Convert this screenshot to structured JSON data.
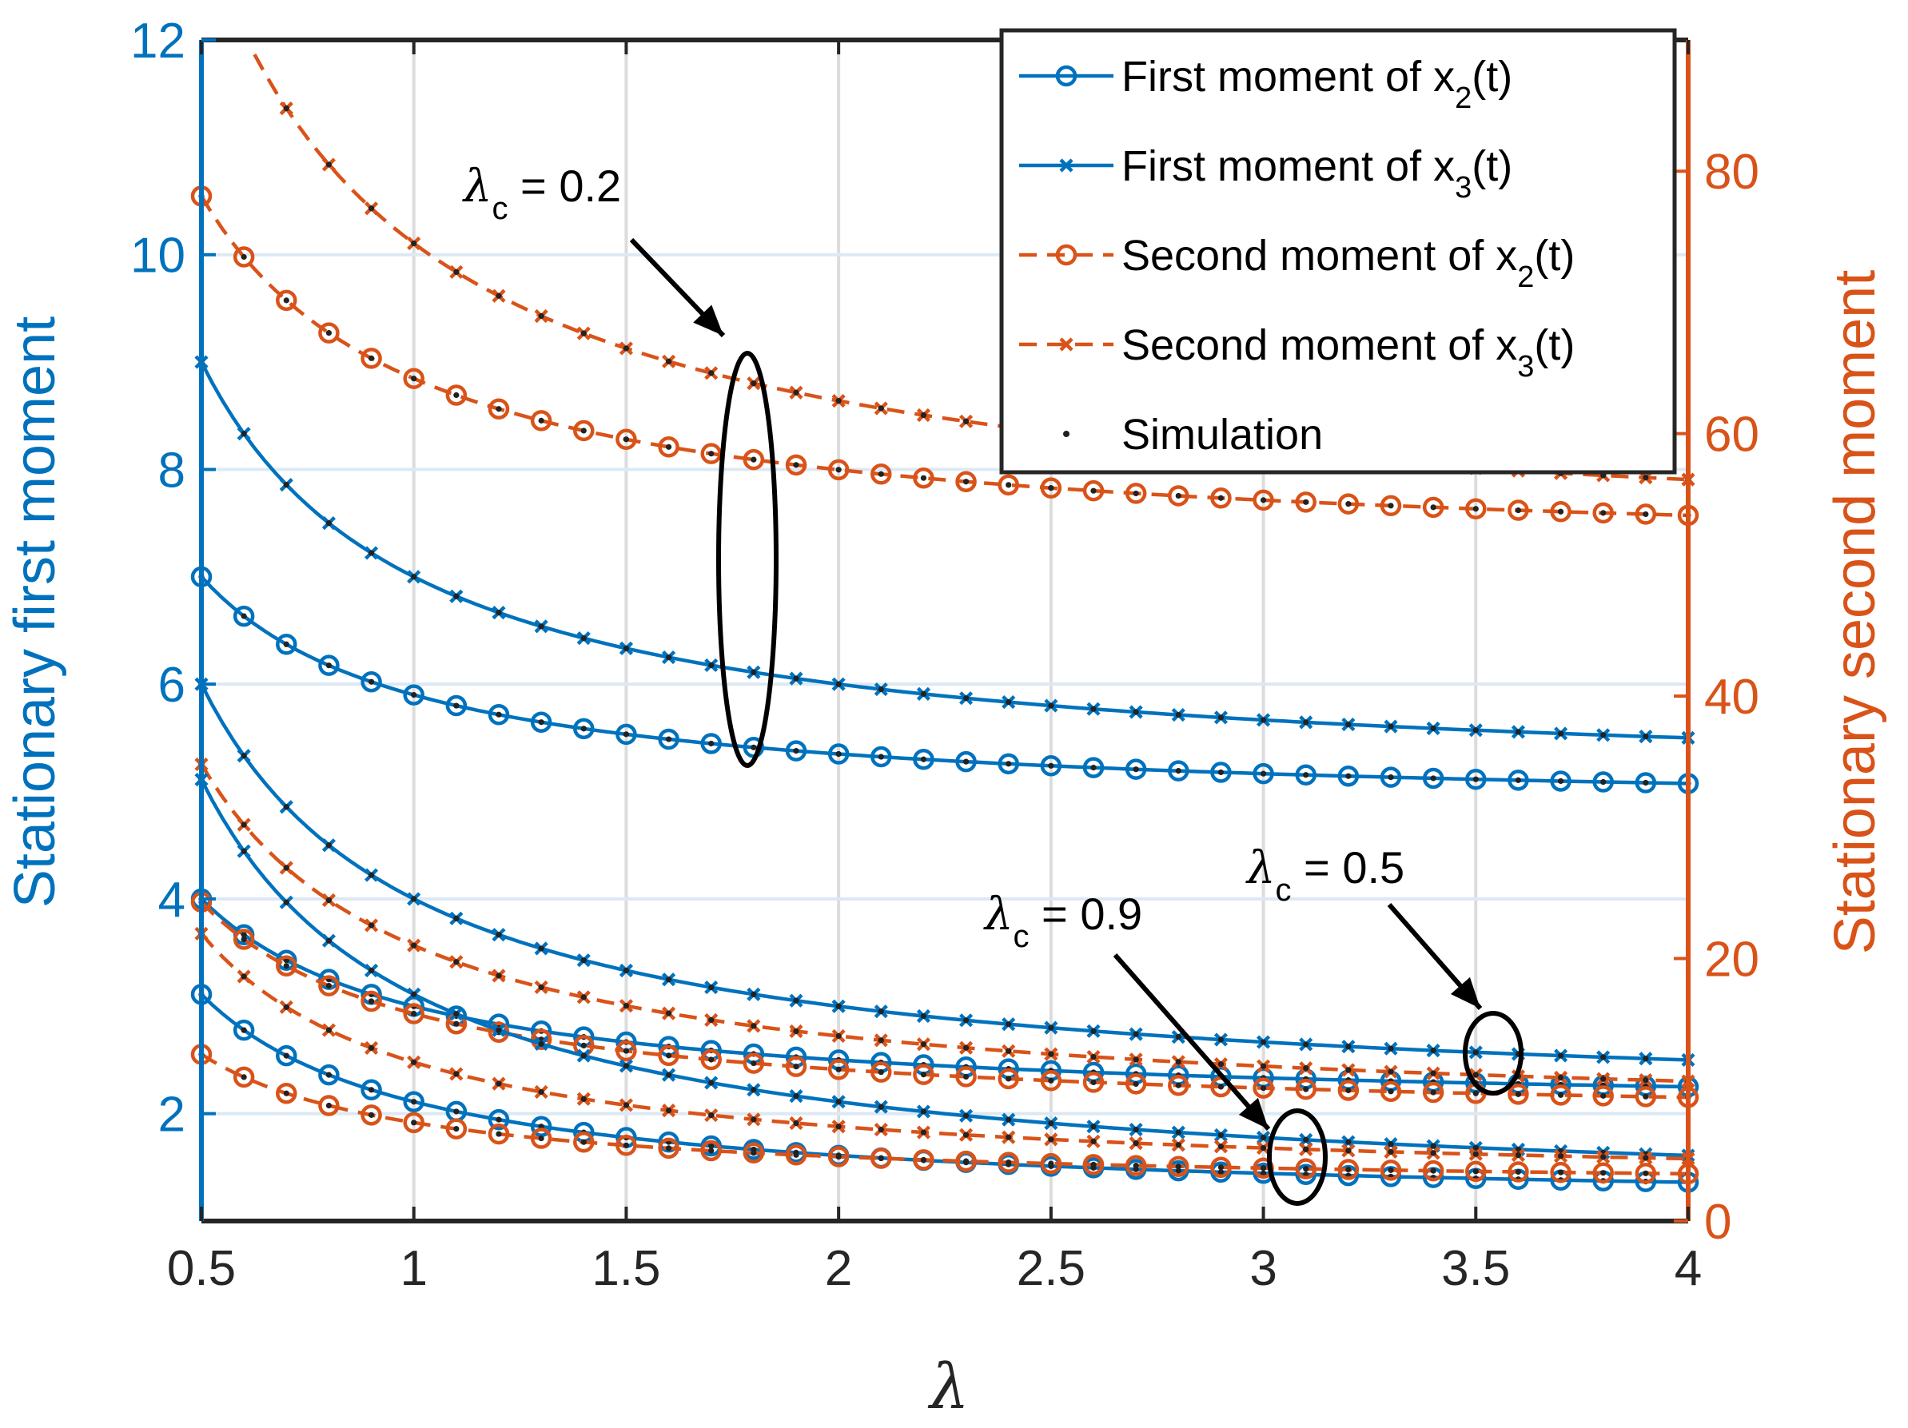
{
  "chart_data": {
    "type": "line",
    "xlabel": "λ",
    "ylabel_left": "Stationary first moment",
    "ylabel_right": "Stationary second moment",
    "xlim": [
      0.5,
      4
    ],
    "ylim_left": [
      1,
      12
    ],
    "ylim_right": [
      0,
      90
    ],
    "xticks": [
      "0.5",
      "1",
      "1.5",
      "2",
      "2.5",
      "3",
      "3.5",
      "4"
    ],
    "yticks_left": [
      "2",
      "4",
      "6",
      "8",
      "10",
      "12"
    ],
    "yticks_right": [
      "0",
      "20",
      "40",
      "60",
      "80"
    ],
    "grid": true,
    "legend_position": "top-right",
    "colors": {
      "first": "#0072BD",
      "second": "#D95319",
      "sim": "#222222"
    },
    "legend": [
      {
        "base": "First moment of x",
        "sub": "2",
        "tail": "(t)",
        "style": "solid",
        "marker": "circle",
        "color": "#0072BD"
      },
      {
        "base": "First moment of x",
        "sub": "3",
        "tail": "(t)",
        "style": "solid",
        "marker": "x",
        "color": "#0072BD"
      },
      {
        "base": "Second moment of x",
        "sub": "2",
        "tail": "(t)",
        "style": "dashed",
        "marker": "circle",
        "color": "#D95319"
      },
      {
        "base": "Second moment of x",
        "sub": "3",
        "tail": "(t)",
        "style": "dashed",
        "marker": "x",
        "color": "#D95319"
      },
      {
        "base": "Simulation",
        "sub": "",
        "tail": "",
        "style": "none",
        "marker": "dot",
        "color": "#222222"
      }
    ],
    "annotations": [
      {
        "symbol": "λ",
        "sub": "c",
        "rest": " = 0.2"
      },
      {
        "symbol": "λ",
        "sub": "c",
        "rest": " = 0.9"
      },
      {
        "symbol": "λ",
        "sub": "c",
        "rest": " = 0.5"
      }
    ],
    "series": [
      {
        "group": "λc = 0.2",
        "kind": "first",
        "var": "x2",
        "axis": "left",
        "a": 4.8,
        "b": 1.1
      },
      {
        "group": "λc = 0.2",
        "kind": "first",
        "var": "x3",
        "axis": "left",
        "a": 5.0,
        "b": 2.0
      },
      {
        "group": "λc = 0.2",
        "kind": "second",
        "var": "x2",
        "axis": "right",
        "a": 50.3,
        "b": 13.9
      },
      {
        "group": "λc = 0.2",
        "kind": "second",
        "var": "x3",
        "axis": "right",
        "a": 50.5,
        "b": 24.0
      },
      {
        "group": "λc = 0.5",
        "kind": "first",
        "var": "x2",
        "axis": "left",
        "a": 2.0,
        "b": 1.0
      },
      {
        "group": "λc = 0.5",
        "kind": "first",
        "var": "x3",
        "axis": "left",
        "a": 2.0,
        "b": 2.0
      },
      {
        "group": "λc = 0.5",
        "kind": "second",
        "var": "x2",
        "axis": "right",
        "a": 7.3,
        "b": 8.5
      },
      {
        "group": "λc = 0.5",
        "kind": "second",
        "var": "x3",
        "axis": "right",
        "a": 7.2,
        "b": 13.8
      },
      {
        "group": "λc = 0.9",
        "kind": "first",
        "var": "x2",
        "axis": "left",
        "a": 1.111,
        "b": 1.0
      },
      {
        "group": "λc = 0.9",
        "kind": "first",
        "var": "x3",
        "axis": "left",
        "a": 1.111,
        "b": 2.0
      },
      {
        "group": "λc = 0.9",
        "kind": "second",
        "var": "x2",
        "axis": "right",
        "a": 2.3,
        "b": 5.2
      },
      {
        "group": "λc = 0.9",
        "kind": "second",
        "var": "x3",
        "axis": "right",
        "a": 2.3,
        "b": 9.8
      }
    ],
    "x_samples": [
      0.5,
      0.6,
      0.7,
      0.8,
      0.9,
      1.0,
      1.1,
      1.2,
      1.3,
      1.4,
      1.5,
      1.6,
      1.7,
      1.8,
      1.9,
      2.0,
      2.1,
      2.2,
      2.3,
      2.4,
      2.5,
      2.6,
      2.7,
      2.8,
      2.9,
      3.0,
      3.1,
      3.2,
      3.3,
      3.4,
      3.5,
      3.6,
      3.7,
      3.8,
      3.9,
      4.0
    ]
  }
}
